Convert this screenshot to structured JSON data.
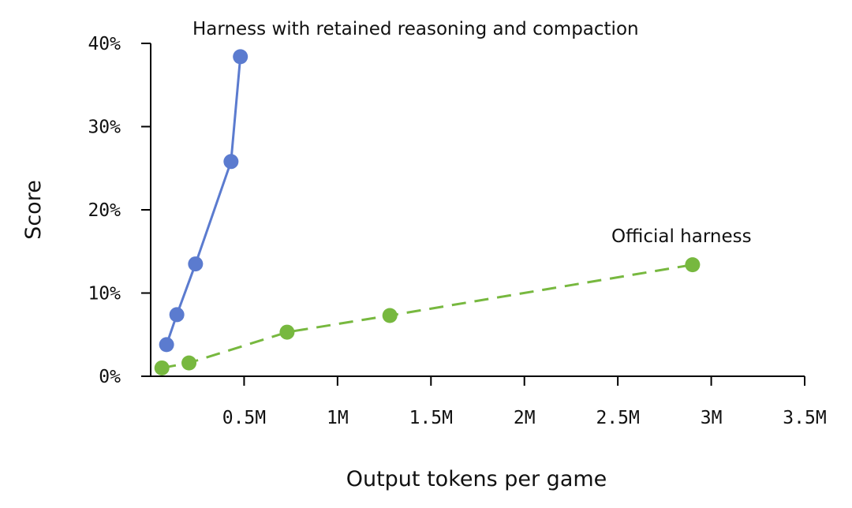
{
  "chart_data": {
    "type": "line",
    "title": "",
    "xlabel": "Output tokens per game",
    "ylabel": "Score",
    "xlim": [
      0,
      3500000
    ],
    "ylim": [
      0,
      40
    ],
    "x_ticks": [
      {
        "value": 500000,
        "label": "0.5M"
      },
      {
        "value": 1000000,
        "label": "1M"
      },
      {
        "value": 1500000,
        "label": "1.5M"
      },
      {
        "value": 2000000,
        "label": "2M"
      },
      {
        "value": 2500000,
        "label": "2.5M"
      },
      {
        "value": 3000000,
        "label": "3M"
      },
      {
        "value": 3500000,
        "label": "3.5M"
      }
    ],
    "y_ticks": [
      {
        "value": 0,
        "label": "0%"
      },
      {
        "value": 10,
        "label": "10%"
      },
      {
        "value": 20,
        "label": "20%"
      },
      {
        "value": 30,
        "label": "30%"
      },
      {
        "value": 40,
        "label": "40%"
      }
    ],
    "grid": false,
    "legend": "none",
    "series": [
      {
        "name": "Harness with retained reasoning and compaction",
        "color": "#5b7bcf",
        "line_style": "solid",
        "x": [
          85000,
          140000,
          240000,
          430000,
          480000
        ],
        "y": [
          3.8,
          7.4,
          13.5,
          25.8,
          38.4
        ]
      },
      {
        "name": "Official harness",
        "color": "#77b83f",
        "line_style": "dashed",
        "x": [
          60000,
          205000,
          730000,
          1280000,
          2900000
        ],
        "y": [
          1.0,
          1.6,
          5.3,
          7.3,
          13.4
        ]
      }
    ]
  }
}
